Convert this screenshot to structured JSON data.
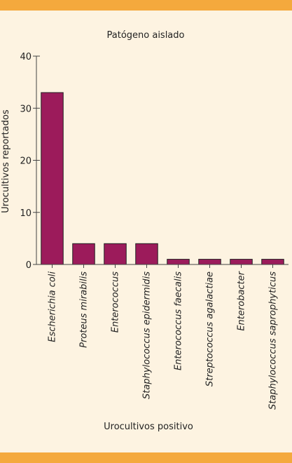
{
  "colors": {
    "band": "#f4a93d",
    "background": "#fdf3e1",
    "bar": "#9c1b5b",
    "axis": "#444444"
  },
  "chart_data": {
    "type": "bar",
    "title": "Patógeno aislado",
    "xlabel": "Urocultivos positivo",
    "ylabel": "Urocultivos reportados",
    "ylim": [
      0,
      40
    ],
    "yticks": [
      0,
      10,
      20,
      30,
      40
    ],
    "grid": false,
    "categories": [
      "Escherichia coli",
      "Proteus mirabilis",
      "Enterococcus",
      "Staphylococcus epidermidis",
      "Enterococcus faecalis",
      "Streptococcus agalactiae",
      "Enterobacter",
      "Staphylococcus saprophyticus"
    ],
    "values": [
      33,
      4,
      4,
      4,
      1,
      1,
      1,
      1
    ]
  }
}
